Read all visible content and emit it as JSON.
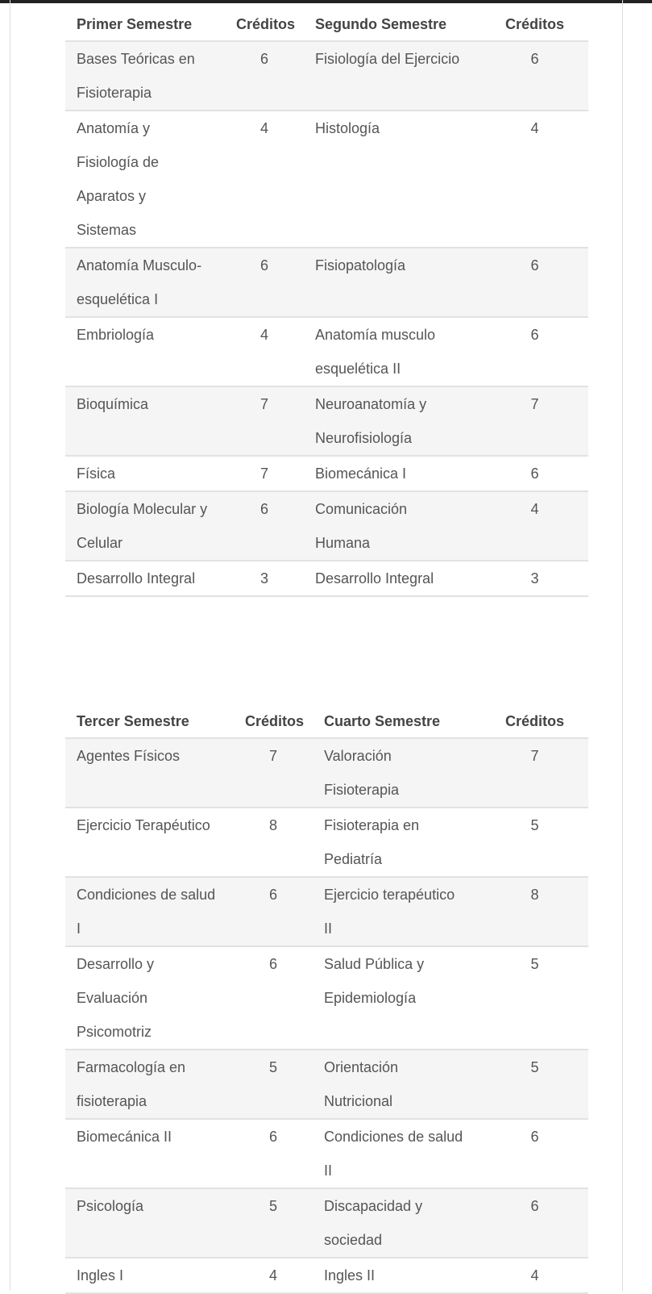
{
  "table1": {
    "headers": [
      "Primer Semestre",
      "Créditos",
      "Segundo  Semestre",
      "Créditos"
    ],
    "rows": [
      [
        "Bases Teóricas en Fisioterapia",
        "6",
        "Fisiología del Ejercicio",
        "6"
      ],
      [
        "Anatomía y Fisiología de Aparatos y Sistemas",
        "4",
        "Histología",
        "4"
      ],
      [
        "Anatomía Musculo-esquelética I",
        "6",
        "Fisiopatología",
        "6"
      ],
      [
        "Embriología",
        "4",
        "Anatomía musculo esquelética II",
        "6"
      ],
      [
        "Bioquímica",
        "7",
        "Neuroanatomía y Neurofisiología",
        "7"
      ],
      [
        "Física",
        "7",
        "Biomecánica I",
        "6"
      ],
      [
        "Biología Molecular y Celular",
        "6",
        "Comunicación Humana",
        "4"
      ],
      [
        "Desarrollo Integral",
        "3",
        "Desarrollo Integral",
        "3"
      ]
    ]
  },
  "table2": {
    "headers": [
      "Tercer Semestre",
      "Créditos",
      "Cuarto Semestre",
      "Créditos"
    ],
    "rows": [
      [
        "Agentes Físicos",
        "7",
        "Valoración Fisioterapia",
        "7"
      ],
      [
        "Ejercicio Terapéutico",
        "8",
        "Fisioterapia en Pediatría",
        "5"
      ],
      [
        "Condiciones de salud I",
        "6",
        "Ejercicio terapéutico II",
        "8"
      ],
      [
        "Desarrollo y Evaluación Psicomotriz",
        "6",
        "Salud Pública y Epidemiología",
        "5"
      ],
      [
        "Farmacología en fisioterapia",
        "5",
        "Orientación Nutricional",
        "5"
      ],
      [
        "Biomecánica II",
        "6",
        "Condiciones de salud II",
        "6"
      ],
      [
        "Psicología",
        "5",
        "Discapacidad y sociedad",
        "6"
      ],
      [
        "Ingles I",
        "4",
        "Ingles II",
        "4"
      ]
    ]
  }
}
